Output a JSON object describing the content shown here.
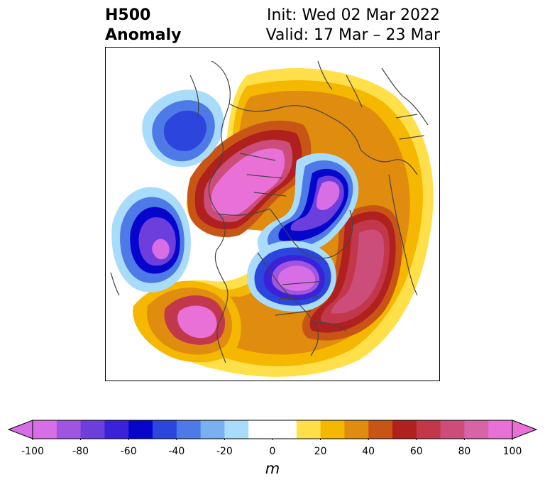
{
  "title": {
    "left_line1": "H500",
    "left_line2": "Anomaly",
    "right_line1": "Init: Wed 02 Mar 2022",
    "right_line2": "Valid: 17 Mar – 23 Mar"
  },
  "colorbar": {
    "label": "m",
    "ticks": [
      "-100",
      "-80",
      "-60",
      "-40",
      "-20",
      "0",
      "20",
      "40",
      "60",
      "80",
      "100"
    ],
    "range": [
      -100,
      100
    ],
    "extend": "both",
    "colors": [
      "#d86ee6",
      "#9f55e0",
      "#6c3fdc",
      "#3a22d8",
      "#0505cc",
      "#2b45dd",
      "#4d7ae6",
      "#78b0f0",
      "#a9dcfb",
      "#ffffff",
      "#ffffff",
      "#ffe04a",
      "#f5b700",
      "#e08c0e",
      "#c85515",
      "#b0201e",
      "#c2384a",
      "#cc4c7a",
      "#d864a8",
      "#e870d6"
    ]
  }
}
